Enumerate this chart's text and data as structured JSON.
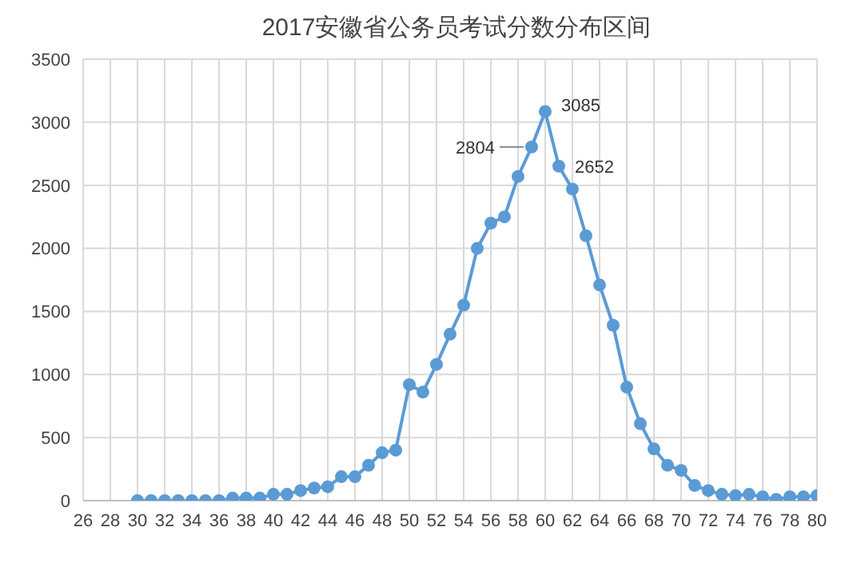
{
  "chart_data": {
    "type": "line",
    "title": "2017安徽省公务员考试分数分布区间",
    "x": [
      30,
      31,
      32,
      33,
      34,
      35,
      36,
      37,
      38,
      39,
      40,
      41,
      42,
      43,
      44,
      45,
      46,
      47,
      48,
      49,
      50,
      51,
      52,
      53,
      54,
      55,
      56,
      57,
      58,
      59,
      60,
      61,
      62,
      63,
      64,
      65,
      66,
      67,
      68,
      69,
      70,
      71,
      72,
      73,
      74,
      75,
      76,
      77,
      78,
      79,
      80
    ],
    "series": [
      {
        "color": "#5b9bd5",
        "values": [
          0,
          0,
          0,
          0,
          0,
          0,
          0,
          20,
          20,
          20,
          50,
          50,
          80,
          100,
          110,
          190,
          190,
          280,
          380,
          400,
          920,
          860,
          1080,
          1320,
          1550,
          2000,
          2200,
          2250,
          2570,
          2804,
          3085,
          2652,
          2470,
          2100,
          1710,
          1390,
          900,
          610,
          410,
          280,
          240,
          120,
          80,
          50,
          40,
          50,
          30,
          10,
          30,
          30,
          40
        ],
        "value_labels": [
          null,
          null,
          null,
          null,
          null,
          null,
          null,
          null,
          null,
          null,
          null,
          null,
          null,
          null,
          null,
          null,
          null,
          null,
          null,
          null,
          null,
          null,
          null,
          null,
          null,
          null,
          null,
          null,
          null,
          "2804",
          "3085",
          "2652",
          null,
          null,
          null,
          null,
          null,
          null,
          null,
          null,
          null,
          null,
          null,
          null,
          null,
          null,
          null,
          null,
          null,
          null,
          null
        ]
      }
    ],
    "xlim": [
      26,
      80
    ],
    "xticks": [
      26,
      28,
      30,
      32,
      34,
      36,
      38,
      40,
      42,
      44,
      46,
      48,
      50,
      52,
      54,
      56,
      58,
      60,
      62,
      64,
      66,
      68,
      70,
      72,
      74,
      76,
      78,
      80
    ],
    "ylim": [
      0,
      3500
    ],
    "yticks": [
      0,
      500,
      1000,
      1500,
      2000,
      2500,
      3000,
      3500
    ],
    "grid": true,
    "legend": false,
    "marker": "circle",
    "line_style": "solid"
  }
}
